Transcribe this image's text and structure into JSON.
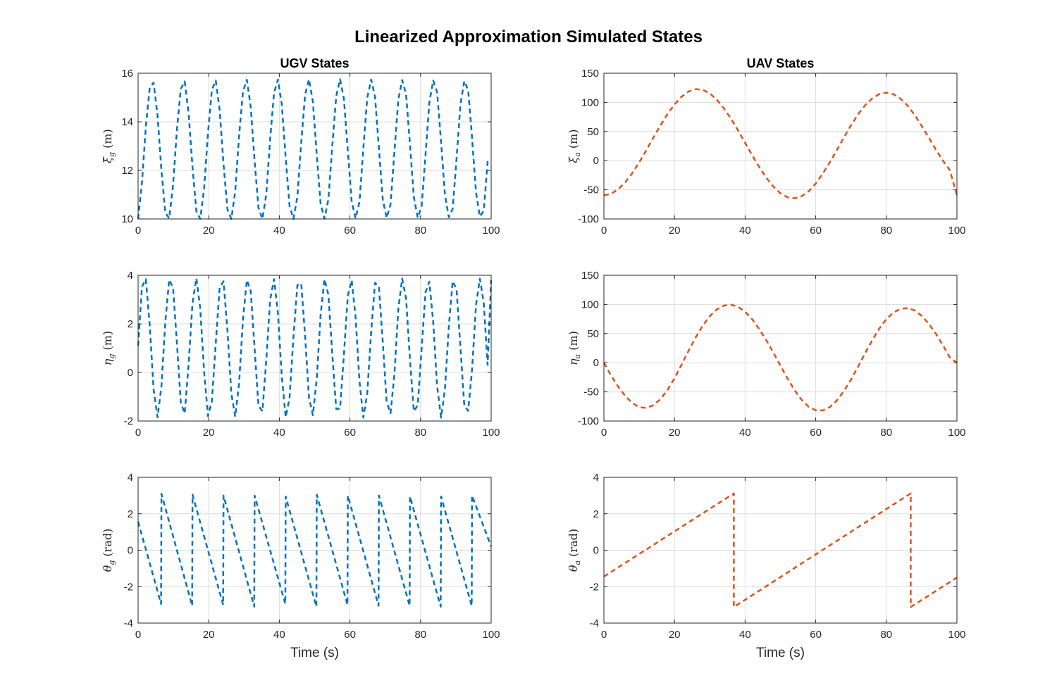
{
  "figure": {
    "title": "Linearized Approximation Simulated States"
  },
  "colors": {
    "ugv": "#0072BD",
    "uav": "#D95319",
    "grid": "#dcdcdc",
    "axes": "#262626"
  },
  "chart_data": [
    {
      "type": "line",
      "id": "ugv-xi",
      "title": "UGV States",
      "xlabel": "",
      "ylabel": {
        "sym": "ξ",
        "sub": "g",
        "unit": "(m)"
      },
      "xlim": [
        0,
        100
      ],
      "ylim": [
        10,
        16
      ],
      "xticks": [
        0,
        20,
        40,
        60,
        80,
        100
      ],
      "yticks": [
        10,
        12,
        14,
        16
      ],
      "grid": true,
      "series": [
        {
          "style": "dashed",
          "color": "#0072BD",
          "x": [
            0,
            1.1,
            2.2,
            3.3,
            4.4,
            5.5,
            6.6,
            7.7,
            8.8,
            9.9,
            11,
            12.1,
            13.2,
            14.3,
            15.4,
            16.5,
            17.6,
            18.7,
            19.8,
            20.9,
            22,
            23.1,
            24.2,
            25.3,
            26.4,
            27.5,
            28.6,
            29.7,
            30.8,
            31.9,
            33,
            34.1,
            35.2,
            36.3,
            37.4,
            38.5,
            39.6,
            40.7,
            41.8,
            42.9,
            44,
            45.1,
            46.2,
            47.3,
            48.4,
            49.5,
            50.6,
            51.7,
            52.8,
            53.9,
            55,
            56.1,
            57.2,
            58.3,
            59.4,
            60.5,
            61.6,
            62.7,
            63.8,
            64.9,
            66,
            67.1,
            68.2,
            69.3,
            70.4,
            71.5,
            72.6,
            73.7,
            74.8,
            75.9,
            77,
            78.1,
            79.2,
            80.3,
            81.4,
            82.5,
            83.6,
            84.7,
            85.8,
            86.9,
            88,
            89.1,
            90.2,
            91.3,
            92.4,
            93.5,
            94.6,
            95.7,
            96.8,
            97.9,
            99,
            100
          ],
          "y": [
            10,
            11.51,
            13.81,
            15.41,
            15.61,
            14.25,
            12.0,
            10.26,
            10.02,
            11.39,
            13.68,
            15.36,
            15.66,
            14.37,
            12.13,
            10.32,
            10,
            11.26,
            13.55,
            15.31,
            15.7,
            14.49,
            12.26,
            10.39,
            10,
            11.14,
            13.42,
            15.25,
            15.73,
            14.61,
            12.39,
            10.46,
            10,
            11.02,
            13.29,
            15.19,
            15.74,
            14.72,
            12.53,
            10.54,
            10,
            10.91,
            13.15,
            15.12,
            15.75,
            14.83,
            12.66,
            10.62,
            10.01,
            10.8,
            13.02,
            15.05,
            15.75,
            14.93,
            12.8,
            10.71,
            10.02,
            10.7,
            12.88,
            14.97,
            15.74,
            15.03,
            12.93,
            10.8,
            10.04,
            10.6,
            12.75,
            14.89,
            15.72,
            15.13,
            13.07,
            10.9,
            10.05,
            10.51,
            12.61,
            14.8,
            15.7,
            15.22,
            13.2,
            11.0,
            10.07,
            10.42,
            12.48,
            14.71,
            15.68,
            15.3,
            13.34,
            11.1,
            10.1,
            10.34,
            12.35,
            12.4
          ]
        }
      ]
    },
    {
      "type": "line",
      "id": "uav-xi",
      "title": "UAV States",
      "xlabel": "",
      "ylabel": {
        "sym": "ξ",
        "sub": "a",
        "unit": "(m)"
      },
      "xlim": [
        0,
        100
      ],
      "ylim": [
        -100,
        150
      ],
      "xticks": [
        0,
        20,
        40,
        60,
        80,
        100
      ],
      "yticks": [
        -100,
        -50,
        0,
        50,
        100,
        150
      ],
      "grid": true,
      "series": [
        {
          "style": "dashed",
          "color": "#D95319",
          "x": [
            0,
            2,
            4,
            6,
            8,
            10,
            12,
            14,
            16,
            18,
            20,
            22,
            24,
            26,
            28,
            30,
            32,
            34,
            36,
            38,
            40,
            42,
            44,
            46,
            48,
            50,
            52,
            54,
            56,
            58,
            60,
            62,
            64,
            66,
            68,
            70,
            72,
            74,
            76,
            78,
            80,
            82,
            84,
            86,
            88,
            90,
            92,
            94,
            96,
            98,
            100
          ],
          "y": [
            -59.4,
            -56.9,
            -49.4,
            -37.4,
            -21.6,
            -2.9,
            17.7,
            39.2,
            60.3,
            79.7,
            96.5,
            109.7,
            118.6,
            122.7,
            121.6,
            115.4,
            104.5,
            89.7,
            71.8,
            51.8,
            30.6,
            9.4,
            -11.0,
            -29.3,
            -44.6,
            -56.0,
            -62.8,
            -64.6,
            -61.1,
            -52.5,
            -39.3,
            -22.4,
            -2.9,
            18.4,
            40.0,
            60.8,
            79.4,
            95.0,
            106.8,
            114.2,
            116.7,
            114.1,
            106.5,
            94.4,
            78.5,
            59.9,
            39.8,
            19.5,
            0.3,
            -16.6,
            -59.4
          ]
        }
      ]
    },
    {
      "type": "line",
      "id": "ugv-eta",
      "title": "",
      "xlabel": "",
      "ylabel": {
        "sym": "η",
        "sub": "g",
        "unit": "(m)"
      },
      "xlim": [
        0,
        100
      ],
      "ylim": [
        -2,
        4
      ],
      "xticks": [
        0,
        20,
        40,
        60,
        80,
        100
      ],
      "yticks": [
        -2,
        0,
        2,
        4
      ],
      "grid": true,
      "series": [
        {
          "style": "dashed",
          "color": "#0072BD",
          "x": [
            0,
            1.1,
            2.2,
            3.3,
            4.4,
            5.5,
            6.6,
            7.7,
            8.8,
            9.9,
            11,
            12.1,
            13.2,
            14.3,
            15.4,
            16.5,
            17.6,
            18.7,
            19.8,
            20.9,
            22,
            23.1,
            24.2,
            25.3,
            26.4,
            27.5,
            28.6,
            29.7,
            30.8,
            31.9,
            33,
            34.1,
            35.2,
            36.3,
            37.4,
            38.5,
            39.6,
            40.7,
            41.8,
            42.9,
            44,
            45.1,
            46.2,
            47.3,
            48.4,
            49.5,
            50.6,
            51.7,
            52.8,
            53.9,
            55,
            56.1,
            57.2,
            58.3,
            59.4,
            60.5,
            61.6,
            62.7,
            63.8,
            64.9,
            66,
            67.1,
            68.2,
            69.3,
            70.4,
            71.5,
            72.6,
            73.7,
            74.8,
            75.9,
            77,
            78.1,
            79.2,
            80.3,
            81.4,
            82.5,
            83.6,
            84.7,
            85.8,
            86.9,
            88,
            89.1,
            90.2,
            91.3,
            92.4,
            93.5,
            94.6,
            95.7,
            96.8,
            97.9,
            99,
            100
          ],
          "y": [
            1.1,
            3.53,
            3.84,
            1.93,
            -0.7,
            -1.85,
            -0.57,
            2.08,
            3.82,
            3.48,
            1.2,
            -1.25,
            -1.69,
            0.31,
            2.86,
            3.88,
            2.62,
            0.02,
            -1.8,
            -1.18,
            1.21,
            3.49,
            3.75,
            1.73,
            -0.87,
            -1.82,
            -0.45,
            2.18,
            3.8,
            3.36,
            0.99,
            -1.37,
            -1.6,
            0.52,
            3.0,
            3.84,
            2.45,
            -0.16,
            -1.84,
            -1.05,
            1.44,
            3.59,
            3.66,
            1.49,
            -1.04,
            -1.76,
            -0.27,
            2.38,
            3.84,
            3.2,
            0.75,
            -1.5,
            -1.49,
            0.75,
            3.16,
            3.8,
            2.28,
            -0.35,
            -1.86,
            -0.88,
            1.65,
            3.69,
            3.54,
            1.26,
            -1.21,
            -1.68,
            -0.09,
            2.59,
            3.86,
            3.04,
            0.52,
            -1.6,
            -1.35,
            0.97,
            3.29,
            3.74,
            2.06,
            -0.55,
            -1.86,
            -0.71,
            1.88,
            3.76,
            3.42,
            1.04,
            -1.36,
            -1.58,
            0.12,
            2.77,
            3.86,
            2.86,
            0.31,
            3.8
          ]
        }
      ]
    },
    {
      "type": "line",
      "id": "uav-eta",
      "title": "",
      "xlabel": "",
      "ylabel": {
        "sym": "η",
        "sub": "a",
        "unit": "(m)"
      },
      "xlim": [
        0,
        100
      ],
      "ylim": [
        -100,
        150
      ],
      "xticks": [
        0,
        20,
        40,
        60,
        80,
        100
      ],
      "yticks": [
        -100,
        -50,
        0,
        50,
        100,
        150
      ],
      "grid": true,
      "series": [
        {
          "style": "dashed",
          "color": "#D95319",
          "x": [
            0,
            2,
            4,
            6,
            8,
            10,
            12,
            14,
            16,
            18,
            20,
            22,
            24,
            26,
            28,
            30,
            32,
            34,
            36,
            38,
            40,
            42,
            44,
            46,
            48,
            50,
            52,
            54,
            56,
            58,
            60,
            62,
            64,
            66,
            68,
            70,
            72,
            74,
            76,
            78,
            80,
            82,
            84,
            86,
            88,
            90,
            92,
            94,
            96,
            98,
            100
          ],
          "y": [
            0,
            -21.5,
            -40.6,
            -56.6,
            -68.9,
            -76.2,
            -77.6,
            -73.0,
            -62.6,
            -46.8,
            -26.6,
            -3.5,
            20.5,
            43.5,
            63.7,
            79.8,
            91.4,
            98.0,
            99.5,
            96.0,
            87.5,
            74.6,
            58.0,
            38.7,
            17.4,
            -4.9,
            -26.8,
            -46.9,
            -63.6,
            -75.5,
            -81.7,
            -81.9,
            -76.1,
            -64.7,
            -48.6,
            -28.9,
            -6.7,
            16.3,
            38.6,
            58.4,
            74.6,
            86.0,
            92.4,
            93.7,
            89.8,
            80.7,
            67.2,
            50.1,
            30.2,
            8.9,
            0
          ]
        }
      ]
    },
    {
      "type": "line",
      "id": "ugv-theta",
      "title": "",
      "xlabel": "Time (s)",
      "ylabel": {
        "sym": "θ",
        "sub": "g",
        "unit": "(rad)"
      },
      "xlim": [
        0,
        100
      ],
      "ylim": [
        -4,
        4
      ],
      "xticks": [
        0,
        20,
        40,
        60,
        80,
        100
      ],
      "yticks": [
        -4,
        -2,
        0,
        2,
        4
      ],
      "grid": true,
      "series": [
        {
          "style": "dashed",
          "color": "#0072BD",
          "x": [
            0,
            6.5,
            6.6,
            15.3,
            15.4,
            24.1,
            24.2,
            32.9,
            33,
            41.7,
            41.8,
            50.5,
            50.6,
            59.3,
            59.4,
            68.1,
            68.2,
            76.9,
            77,
            85.7,
            85.8,
            94.5,
            94.6,
            100
          ],
          "y": [
            1.57,
            -2.95,
            3.1,
            -3.05,
            3.05,
            -3.0,
            3.0,
            -3.1,
            3.0,
            -2.95,
            2.95,
            -3.1,
            3.05,
            -3.0,
            3.0,
            -3.05,
            3.0,
            -3.05,
            2.95,
            -3.1,
            2.95,
            -3.05,
            3.0,
            0.2
          ]
        }
      ]
    },
    {
      "type": "line",
      "id": "uav-theta",
      "title": "",
      "xlabel": "Time (s)",
      "ylabel": {
        "sym": "θ",
        "sub": "a",
        "unit": "(rad)"
      },
      "xlim": [
        0,
        100
      ],
      "ylim": [
        -4,
        4
      ],
      "xticks": [
        0,
        20,
        40,
        60,
        80,
        100
      ],
      "yticks": [
        -4,
        -2,
        0,
        2,
        4
      ],
      "grid": true,
      "series": [
        {
          "style": "dashed",
          "color": "#D95319",
          "x": [
            0,
            36.8,
            36.8,
            86.9,
            86.9,
            100
          ],
          "y": [
            -1.45,
            3.12,
            -3.12,
            3.12,
            -3.12,
            -1.5
          ]
        }
      ]
    }
  ]
}
